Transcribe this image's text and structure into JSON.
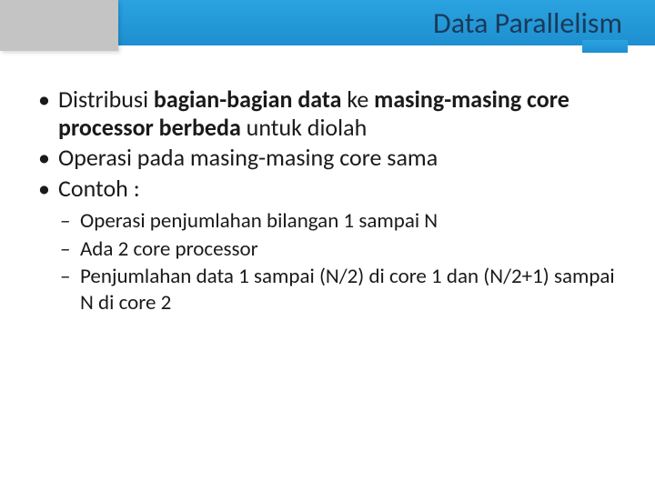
{
  "slide": {
    "title": "Data Parallelism",
    "header_colors": {
      "gradient_top": "#2ba3e0",
      "gradient_bottom": "#1e8fd0",
      "left_block": "#c4c4c4",
      "title_color": "#1a3a5a"
    },
    "bullets": [
      {
        "pre": "Distribusi ",
        "bold1": "bagian-bagian data",
        "mid": " ke ",
        "bold2": "masing-masing core processor berbeda",
        "post": " untuk diolah"
      },
      {
        "text": "Operasi pada masing-masing core sama"
      },
      {
        "text": "Contoh :"
      }
    ],
    "sub_bullets": [
      "Operasi penjumlahan bilangan 1 sampai N",
      "Ada 2 core processor",
      "Penjumlahan data 1 sampai (N/2) di core 1 dan (N/2+1) sampai N di core 2"
    ]
  }
}
